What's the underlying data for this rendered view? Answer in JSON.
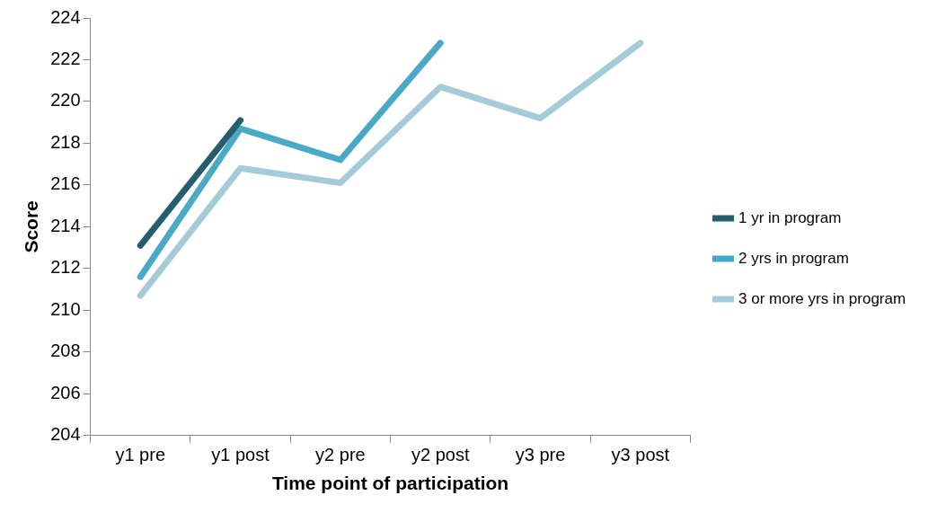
{
  "chart_data": {
    "type": "line",
    "ylabel": "Score",
    "xlabel": "Time point of participation",
    "categories": [
      "y1 pre",
      "y1 post",
      "y2 pre",
      "y2 post",
      "y3 pre",
      "y3 post"
    ],
    "series": [
      {
        "name": "1 yr in program",
        "color": "#255e6e",
        "values": [
          213.1,
          219.1,
          null,
          null,
          null,
          null
        ]
      },
      {
        "name": "2 yrs in program",
        "color": "#4aaac6",
        "values": [
          211.6,
          218.7,
          217.2,
          222.8,
          null,
          null
        ]
      },
      {
        "name": "3 or more yrs in program",
        "color": "#a5cbd9",
        "values": [
          210.7,
          216.8,
          216.1,
          220.7,
          219.2,
          222.8
        ]
      }
    ],
    "ylim": [
      204,
      224
    ],
    "yticks": [
      204,
      206,
      208,
      210,
      212,
      214,
      216,
      218,
      220,
      222,
      224
    ],
    "grid": false,
    "legend": "right",
    "marker": "none"
  }
}
